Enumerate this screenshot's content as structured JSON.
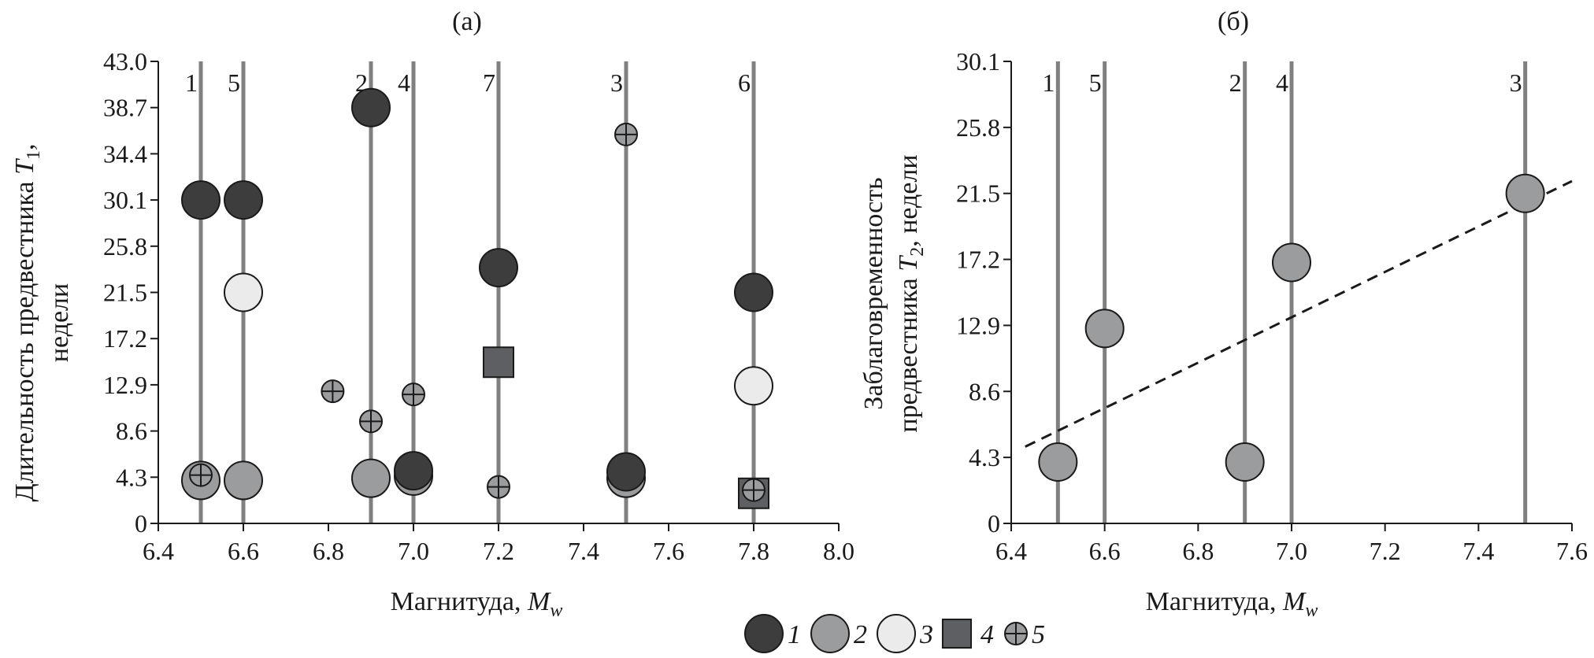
{
  "colors": {
    "type1": "#3d3d3d",
    "type2": "#9b9c9e",
    "type3": "#ebebeb",
    "type4": "#5e5f62",
    "type5": "#9b9c9e",
    "event_line": "#808080",
    "axis": "#1a1a1a",
    "trend": "#1a1a1a"
  },
  "legend": {
    "placement": "bottom-center",
    "items": [
      {
        "label": "1",
        "marker": "circle-dark",
        "type": 1
      },
      {
        "label": "2",
        "marker": "circle-gray",
        "type": 2
      },
      {
        "label": "3",
        "marker": "circle-light",
        "type": 3
      },
      {
        "label": "4",
        "marker": "square-dark",
        "type": 4
      },
      {
        "label": "5",
        "marker": "circle-cross",
        "type": 5
      }
    ]
  },
  "chart_data": [
    {
      "type": "scatter",
      "title": "(а)",
      "xlabel_main": "Магнитуда, ",
      "xlabel_var": "M",
      "xlabel_sub": "w",
      "ylabel_line1_main": "Длительность предвестника ",
      "ylabel_line1_var": "T",
      "ylabel_line1_sub": "1",
      "ylabel_line1_tail": ",",
      "ylabel_line2": "недели",
      "xlim": [
        6.4,
        8.0
      ],
      "ylim": [
        0,
        43.0
      ],
      "xticks": [
        "6.4",
        "6.6",
        "6.8",
        "7.0",
        "7.2",
        "7.4",
        "7.6",
        "7.8",
        "8.0"
      ],
      "yticks": [
        "0",
        "4.3",
        "8.6",
        "12.9",
        "17.2",
        "21.5",
        "25.8",
        "30.1",
        "34.4",
        "38.7",
        "43.0"
      ],
      "grid": false,
      "event_lines": [
        {
          "x": 6.5,
          "label": "1"
        },
        {
          "x": 6.6,
          "label": "5"
        },
        {
          "x": 6.9,
          "label": "2"
        },
        {
          "x": 7.0,
          "label": "4"
        },
        {
          "x": 7.2,
          "label": "7"
        },
        {
          "x": 7.5,
          "label": "3"
        },
        {
          "x": 7.8,
          "label": "6"
        }
      ],
      "points": [
        {
          "x": 6.5,
          "y": 4.0,
          "type": 2
        },
        {
          "x": 6.5,
          "y": 30.1,
          "type": 1
        },
        {
          "x": 6.5,
          "y": 4.5,
          "type": 5
        },
        {
          "x": 6.6,
          "y": 30.1,
          "type": 1
        },
        {
          "x": 6.6,
          "y": 21.5,
          "type": 3
        },
        {
          "x": 6.6,
          "y": 4.0,
          "type": 2
        },
        {
          "x": 6.81,
          "y": 12.3,
          "type": 5
        },
        {
          "x": 6.9,
          "y": 38.7,
          "type": 1
        },
        {
          "x": 6.9,
          "y": 9.5,
          "type": 5
        },
        {
          "x": 6.9,
          "y": 4.2,
          "type": 2
        },
        {
          "x": 7.0,
          "y": 12.0,
          "type": 5
        },
        {
          "x": 7.0,
          "y": 4.4,
          "type": 2
        },
        {
          "x": 7.0,
          "y": 4.9,
          "type": 1
        },
        {
          "x": 7.2,
          "y": 23.8,
          "type": 1
        },
        {
          "x": 7.2,
          "y": 15.0,
          "type": 4
        },
        {
          "x": 7.2,
          "y": 3.4,
          "type": 5
        },
        {
          "x": 7.5,
          "y": 36.2,
          "type": 5
        },
        {
          "x": 7.5,
          "y": 4.2,
          "type": 2
        },
        {
          "x": 7.5,
          "y": 4.8,
          "type": 1
        },
        {
          "x": 7.8,
          "y": 21.5,
          "type": 1
        },
        {
          "x": 7.8,
          "y": 12.8,
          "type": 3
        },
        {
          "x": 7.8,
          "y": 2.8,
          "type": 4
        },
        {
          "x": 7.8,
          "y": 3.1,
          "type": 5
        }
      ]
    },
    {
      "type": "scatter",
      "title": "(б)",
      "xlabel_main": "Магнитуда, ",
      "xlabel_var": "M",
      "xlabel_sub": "w",
      "ylabel_line1": "Заблаговременность",
      "ylabel_line2_main": "предвестника ",
      "ylabel_line2_var": "T",
      "ylabel_line2_sub": "2",
      "ylabel_line2_tail": ", недели",
      "xlim": [
        6.4,
        7.6
      ],
      "ylim": [
        0,
        30.1
      ],
      "xticks": [
        "6.4",
        "6.6",
        "6.8",
        "7.0",
        "7.2",
        "7.4",
        "7.6"
      ],
      "yticks": [
        "0",
        "4.3",
        "8.6",
        "12.9",
        "17.2",
        "21.5",
        "25.8",
        "30.1"
      ],
      "grid": false,
      "event_lines": [
        {
          "x": 6.5,
          "label": "1"
        },
        {
          "x": 6.6,
          "label": "5"
        },
        {
          "x": 6.9,
          "label": "2"
        },
        {
          "x": 7.0,
          "label": "4"
        },
        {
          "x": 7.5,
          "label": "3"
        }
      ],
      "points": [
        {
          "x": 6.5,
          "y": 4.0,
          "type": 2
        },
        {
          "x": 6.6,
          "y": 12.7,
          "type": 2
        },
        {
          "x": 6.9,
          "y": 4.0,
          "type": 2
        },
        {
          "x": 7.0,
          "y": 17.0,
          "type": 2
        },
        {
          "x": 7.5,
          "y": 21.5,
          "type": 2
        }
      ],
      "trend_line": {
        "style": "dashed",
        "x": [
          6.43,
          7.6
        ],
        "y": [
          5.0,
          22.3
        ]
      }
    }
  ]
}
